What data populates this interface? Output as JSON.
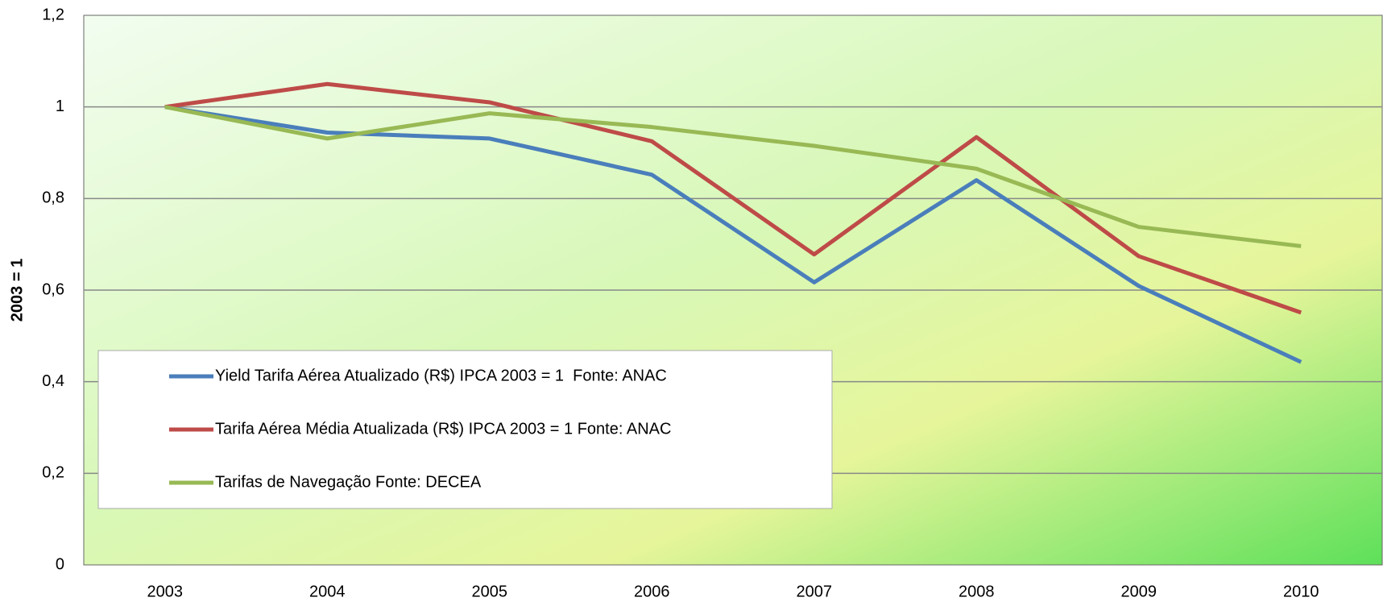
{
  "chart_data": {
    "type": "line",
    "y_label": "2003 = 1",
    "categories": [
      "2003",
      "2004",
      "2005",
      "2006",
      "2007",
      "2008",
      "2009",
      "2010"
    ],
    "series": [
      {
        "name": "Yield Tarifa Aérea Atualizado (R$) IPCA 2003 = 1  Fonte: ANAC",
        "color": "#4a7ebb",
        "values": [
          1,
          0.944,
          0.931,
          0.852,
          0.617,
          0.84,
          0.609,
          0.443
        ]
      },
      {
        "name": "Tarifa Aérea Média Atualizada (R$) IPCA 2003 = 1 Fonte: ANAC",
        "color": "#be4b48",
        "values": [
          1,
          1.05,
          1.01,
          0.925,
          0.678,
          0.934,
          0.674,
          0.551
        ]
      },
      {
        "name": "Tarifas de Navegação Fonte: DECEA",
        "color": "#98b954",
        "values": [
          1,
          0.931,
          0.986,
          0.956,
          0.915,
          0.865,
          0.738,
          0.696
        ]
      }
    ],
    "ylim": [
      0,
      1.2
    ],
    "yticks": [
      0,
      {
        "value": 0.2,
        "label": "0,2"
      },
      {
        "value": 0.4,
        "label": "0,4"
      },
      {
        "value": 0.6,
        "label": "0,6"
      },
      {
        "value": 0.8,
        "label": "0,8"
      },
      1,
      {
        "value": 1.2,
        "label": "1,2"
      }
    ],
    "grid": true,
    "legend": "lower left"
  }
}
